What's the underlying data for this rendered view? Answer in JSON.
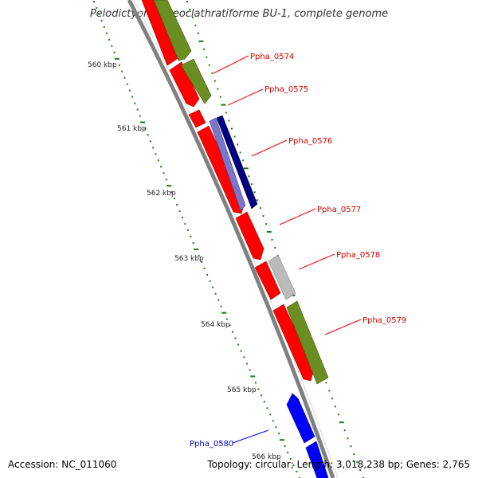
{
  "title": "Pelodictyon phaeoclathratiforme BU-1, complete genome",
  "footer": {
    "accession": "Accession: NC_011060",
    "topology": "Topology: circular; Length: 3,018,238 bp; Genes: 2,765"
  },
  "colors": {
    "backbone": "#808080",
    "tick": "#1a7a1a",
    "red": "#ff0000",
    "olive": "#6b8e23",
    "navy": "#000080",
    "lightblue": "#7777cc",
    "gray": "#bbbbbb",
    "blue": "#0000ff"
  },
  "ruler_labels": [
    "560 kbp",
    "561 kbp",
    "562 kbp",
    "563 kbp",
    "564 kbp",
    "565 kbp",
    "566 kbp"
  ],
  "genes": [
    {
      "label": "Ppha_0574",
      "color": "#ff0000"
    },
    {
      "label": "Ppha_0575",
      "color": "#ff0000"
    },
    {
      "label": "Ppha_0576",
      "color": "#ff0000"
    },
    {
      "label": "Ppha_0577",
      "color": "#ff0000"
    },
    {
      "label": "Ppha_0578",
      "color": "#ff0000"
    },
    {
      "label": "Ppha_0579",
      "color": "#ff0000"
    },
    {
      "label": "Ppha_0580",
      "color": "#0000ff"
    }
  ]
}
